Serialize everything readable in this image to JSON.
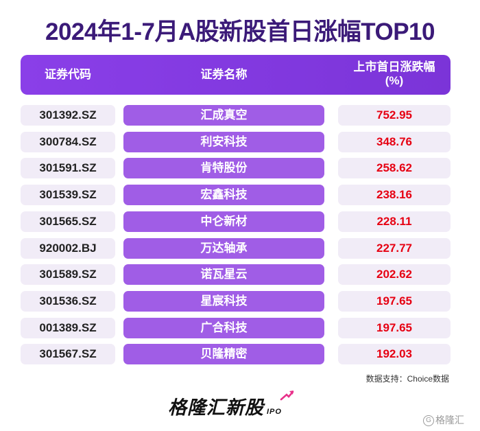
{
  "title": "2024年1-7月A股新股首日涨幅TOP10",
  "chart_data": {
    "type": "table",
    "columns": [
      "证券代码",
      "证券名称",
      "上市首日涨跌幅",
      "(%)"
    ],
    "rows": [
      {
        "code": "301392.SZ",
        "name": "汇成真空",
        "pct": "752.95"
      },
      {
        "code": "300784.SZ",
        "name": "利安科技",
        "pct": "348.76"
      },
      {
        "code": "301591.SZ",
        "name": "肯特股份",
        "pct": "258.62"
      },
      {
        "code": "301539.SZ",
        "name": "宏鑫科技",
        "pct": "238.16"
      },
      {
        "code": "301565.SZ",
        "name": "中仑新材",
        "pct": "228.11"
      },
      {
        "code": "920002.BJ",
        "name": "万达轴承",
        "pct": "227.77"
      },
      {
        "code": "301589.SZ",
        "name": "诺瓦星云",
        "pct": "202.62"
      },
      {
        "code": "301536.SZ",
        "name": "星宸科技",
        "pct": "197.65"
      },
      {
        "code": "001389.SZ",
        "name": "广合科技",
        "pct": "197.65"
      },
      {
        "code": "301567.SZ",
        "name": "贝隆精密",
        "pct": "192.03"
      }
    ]
  },
  "source": "数据支持：Choice数据",
  "logo": {
    "text": "格隆汇新股",
    "suffix": "IPO"
  },
  "watermark": {
    "glyph": "G",
    "text": "格隆汇"
  },
  "colors": {
    "title": "#3b1a78",
    "header": "#8a3fe8",
    "name_cell": "#a05de6",
    "value": "#e60012",
    "cell_bg": "#f1ecf7"
  }
}
